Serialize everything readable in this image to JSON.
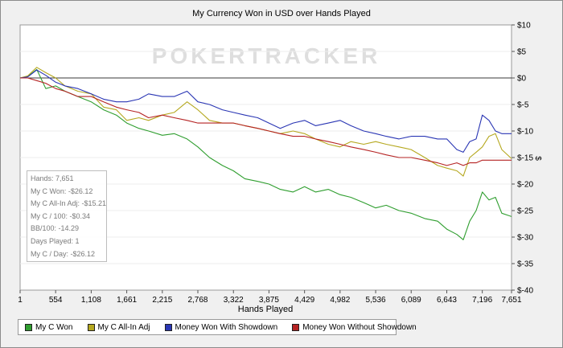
{
  "chart_data": {
    "type": "line",
    "title": "My Currency Won in USD over Hands Played",
    "xlabel": "Hands Played",
    "ylabel": "$",
    "xlim": [
      1,
      7651
    ],
    "ylim": [
      -40,
      10
    ],
    "x_ticks": [
      1,
      554,
      1108,
      1661,
      2215,
      2768,
      3322,
      3875,
      4429,
      4982,
      5536,
      6089,
      6643,
      7196,
      7651
    ],
    "x_tick_labels": [
      "1",
      "554",
      "1,108",
      "1,661",
      "2,215",
      "2,768",
      "3,322",
      "3,875",
      "4,429",
      "4,982",
      "5,536",
      "6,089",
      "6,643",
      "7,196",
      "7,651"
    ],
    "y_ticks": [
      10,
      5,
      0,
      -5,
      -10,
      -15,
      -20,
      -25,
      -30,
      -35,
      -40
    ],
    "y_tick_labels": [
      "$10",
      "$5",
      "$0",
      "$-5",
      "$-10",
      "$-15",
      "$-20",
      "$-25",
      "$-30",
      "$-35",
      "$-40"
    ],
    "y_axis_side": "right",
    "grid": true,
    "legend_position": "bottom",
    "watermark": "POKERTRACKER",
    "series": [
      {
        "name": "My C Won",
        "color": "#2f9e2f",
        "points": [
          [
            1,
            0
          ],
          [
            120,
            0.3
          ],
          [
            260,
            1.6
          ],
          [
            400,
            -2.0
          ],
          [
            554,
            -1.5
          ],
          [
            700,
            -2.5
          ],
          [
            900,
            -3.5
          ],
          [
            1108,
            -4.5
          ],
          [
            1300,
            -6.0
          ],
          [
            1500,
            -7.0
          ],
          [
            1661,
            -8.5
          ],
          [
            1850,
            -9.5
          ],
          [
            2000,
            -10.0
          ],
          [
            2215,
            -10.8
          ],
          [
            2400,
            -10.5
          ],
          [
            2600,
            -11.5
          ],
          [
            2768,
            -13.0
          ],
          [
            2950,
            -15.0
          ],
          [
            3150,
            -16.5
          ],
          [
            3322,
            -17.5
          ],
          [
            3500,
            -19.0
          ],
          [
            3700,
            -19.5
          ],
          [
            3875,
            -20.0
          ],
          [
            4050,
            -21.0
          ],
          [
            4250,
            -21.5
          ],
          [
            4429,
            -20.5
          ],
          [
            4600,
            -21.5
          ],
          [
            4800,
            -21.0
          ],
          [
            4982,
            -22.0
          ],
          [
            5150,
            -22.5
          ],
          [
            5350,
            -23.5
          ],
          [
            5536,
            -24.5
          ],
          [
            5700,
            -24.0
          ],
          [
            5900,
            -25.0
          ],
          [
            6089,
            -25.5
          ],
          [
            6300,
            -26.5
          ],
          [
            6500,
            -27.0
          ],
          [
            6643,
            -28.5
          ],
          [
            6800,
            -29.5
          ],
          [
            6900,
            -30.5
          ],
          [
            7000,
            -27.0
          ],
          [
            7100,
            -25.0
          ],
          [
            7196,
            -21.5
          ],
          [
            7300,
            -23.0
          ],
          [
            7400,
            -22.5
          ],
          [
            7500,
            -25.5
          ],
          [
            7651,
            -26.12
          ]
        ]
      },
      {
        "name": "My C All-In Adj",
        "color": "#b5a81f",
        "points": [
          [
            1,
            0
          ],
          [
            120,
            0.4
          ],
          [
            260,
            2.0
          ],
          [
            400,
            1.0
          ],
          [
            554,
            0.0
          ],
          [
            700,
            -1.5
          ],
          [
            900,
            -2.5
          ],
          [
            1108,
            -3.0
          ],
          [
            1300,
            -5.5
          ],
          [
            1500,
            -6.0
          ],
          [
            1661,
            -8.0
          ],
          [
            1850,
            -7.5
          ],
          [
            2000,
            -8.0
          ],
          [
            2215,
            -7.0
          ],
          [
            2400,
            -6.5
          ],
          [
            2600,
            -4.5
          ],
          [
            2768,
            -6.0
          ],
          [
            2950,
            -8.0
          ],
          [
            3150,
            -8.5
          ],
          [
            3322,
            -8.5
          ],
          [
            3500,
            -9.0
          ],
          [
            3700,
            -9.5
          ],
          [
            3875,
            -10.0
          ],
          [
            4050,
            -10.5
          ],
          [
            4250,
            -10.0
          ],
          [
            4429,
            -10.5
          ],
          [
            4600,
            -11.5
          ],
          [
            4800,
            -12.5
          ],
          [
            4982,
            -13.0
          ],
          [
            5150,
            -12.0
          ],
          [
            5350,
            -12.5
          ],
          [
            5536,
            -12.0
          ],
          [
            5700,
            -12.5
          ],
          [
            5900,
            -13.0
          ],
          [
            6089,
            -13.5
          ],
          [
            6300,
            -15.0
          ],
          [
            6500,
            -16.5
          ],
          [
            6643,
            -17.0
          ],
          [
            6800,
            -17.5
          ],
          [
            6900,
            -18.5
          ],
          [
            7000,
            -15.0
          ],
          [
            7100,
            -14.0
          ],
          [
            7196,
            -13.0
          ],
          [
            7300,
            -11.0
          ],
          [
            7400,
            -10.5
          ],
          [
            7500,
            -13.5
          ],
          [
            7651,
            -15.21
          ]
        ]
      },
      {
        "name": "Money Won With Showdown",
        "color": "#2a36b4",
        "points": [
          [
            1,
            0
          ],
          [
            120,
            0.2
          ],
          [
            260,
            1.5
          ],
          [
            400,
            0.5
          ],
          [
            554,
            -0.8
          ],
          [
            700,
            -1.5
          ],
          [
            900,
            -2.0
          ],
          [
            1108,
            -3.0
          ],
          [
            1300,
            -4.0
          ],
          [
            1500,
            -4.5
          ],
          [
            1661,
            -4.5
          ],
          [
            1850,
            -4.0
          ],
          [
            2000,
            -3.0
          ],
          [
            2215,
            -3.5
          ],
          [
            2400,
            -3.5
          ],
          [
            2600,
            -2.5
          ],
          [
            2768,
            -4.5
          ],
          [
            2950,
            -5.0
          ],
          [
            3150,
            -6.0
          ],
          [
            3322,
            -6.5
          ],
          [
            3500,
            -7.0
          ],
          [
            3700,
            -7.5
          ],
          [
            3875,
            -8.5
          ],
          [
            4050,
            -9.5
          ],
          [
            4250,
            -8.5
          ],
          [
            4429,
            -8.0
          ],
          [
            4600,
            -9.0
          ],
          [
            4800,
            -8.5
          ],
          [
            4982,
            -8.0
          ],
          [
            5150,
            -9.0
          ],
          [
            5350,
            -10.0
          ],
          [
            5536,
            -10.5
          ],
          [
            5700,
            -11.0
          ],
          [
            5900,
            -11.5
          ],
          [
            6089,
            -11.0
          ],
          [
            6300,
            -11.0
          ],
          [
            6500,
            -11.5
          ],
          [
            6643,
            -11.5
          ],
          [
            6800,
            -13.5
          ],
          [
            6900,
            -14.0
          ],
          [
            7000,
            -12.0
          ],
          [
            7100,
            -11.5
          ],
          [
            7196,
            -7.0
          ],
          [
            7300,
            -8.0
          ],
          [
            7400,
            -10.0
          ],
          [
            7500,
            -10.5
          ],
          [
            7651,
            -10.5
          ]
        ]
      },
      {
        "name": "Money Won Without Showdown",
        "color": "#b52323",
        "points": [
          [
            1,
            0
          ],
          [
            120,
            0.0
          ],
          [
            260,
            -0.5
          ],
          [
            400,
            -1.0
          ],
          [
            554,
            -2.0
          ],
          [
            700,
            -2.5
          ],
          [
            900,
            -3.5
          ],
          [
            1108,
            -3.5
          ],
          [
            1300,
            -4.5
          ],
          [
            1500,
            -5.5
          ],
          [
            1661,
            -6.0
          ],
          [
            1850,
            -6.5
          ],
          [
            2000,
            -7.5
          ],
          [
            2215,
            -7.0
          ],
          [
            2400,
            -7.5
          ],
          [
            2600,
            -8.0
          ],
          [
            2768,
            -8.5
          ],
          [
            2950,
            -8.5
          ],
          [
            3150,
            -8.5
          ],
          [
            3322,
            -8.5
          ],
          [
            3500,
            -9.0
          ],
          [
            3700,
            -9.5
          ],
          [
            3875,
            -10.0
          ],
          [
            4050,
            -10.5
          ],
          [
            4250,
            -11.0
          ],
          [
            4429,
            -11.0
          ],
          [
            4600,
            -11.5
          ],
          [
            4800,
            -12.0
          ],
          [
            4982,
            -12.5
          ],
          [
            5150,
            -13.0
          ],
          [
            5350,
            -13.5
          ],
          [
            5536,
            -14.0
          ],
          [
            5700,
            -14.5
          ],
          [
            5900,
            -15.0
          ],
          [
            6089,
            -15.0
          ],
          [
            6300,
            -15.5
          ],
          [
            6500,
            -16.0
          ],
          [
            6643,
            -16.5
          ],
          [
            6800,
            -16.0
          ],
          [
            6900,
            -16.5
          ],
          [
            7000,
            -16.0
          ],
          [
            7100,
            -16.0
          ],
          [
            7196,
            -15.5
          ],
          [
            7300,
            -15.5
          ],
          [
            7400,
            -15.5
          ],
          [
            7500,
            -15.5
          ],
          [
            7651,
            -15.5
          ]
        ]
      }
    ]
  },
  "stats": [
    "Hands: 7,651",
    "My C Won: -$26.12",
    "My C All-In Adj: -$15.21",
    "My C / 100: -$0.34",
    "BB/100: -14.29",
    "Days Played: 1",
    "My C / Day: -$26.12"
  ],
  "legend": [
    {
      "label": "My C Won",
      "color": "#2f9e2f"
    },
    {
      "label": "My C All-In Adj",
      "color": "#b5a81f"
    },
    {
      "label": "Money Won With Showdown",
      "color": "#2a36b4"
    },
    {
      "label": "Money Won Without Showdown",
      "color": "#b52323"
    }
  ]
}
